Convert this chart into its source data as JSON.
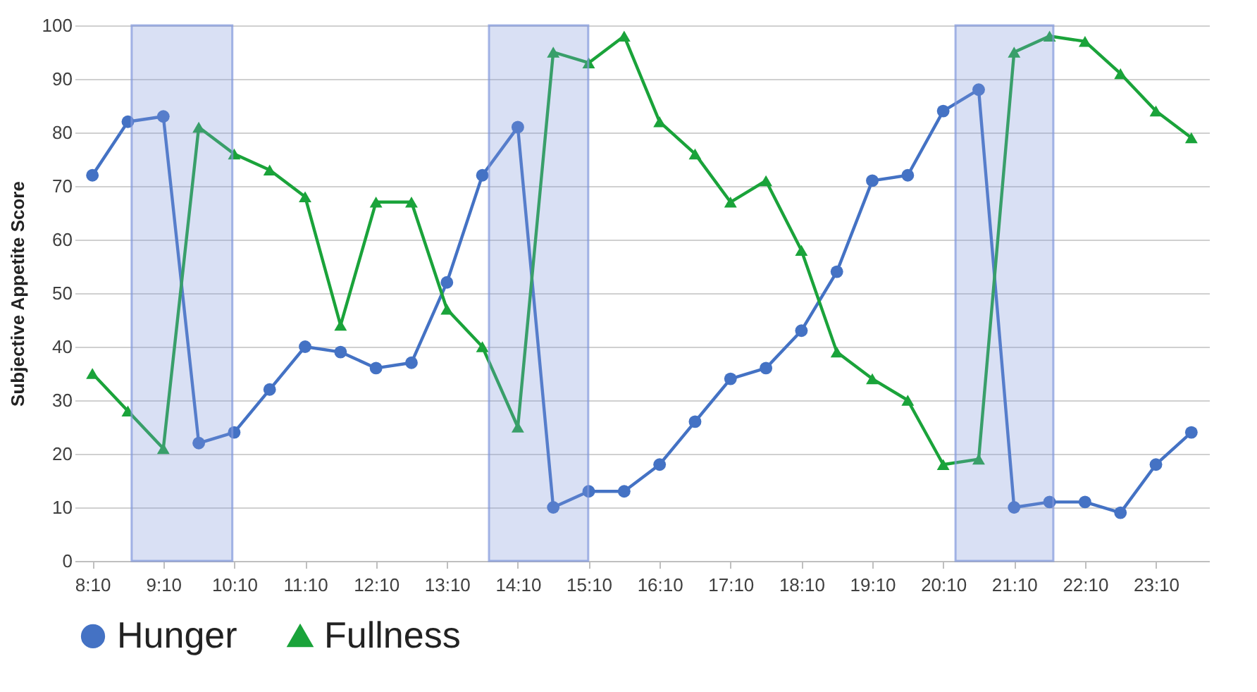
{
  "chart_data": {
    "type": "line",
    "ylabel": "Subjective Appetite Score",
    "x": [
      8.1667,
      8.6667,
      9.1667,
      9.6667,
      10.1667,
      10.6667,
      11.1667,
      11.6667,
      12.1667,
      12.6667,
      13.1667,
      13.6667,
      14.1667,
      14.6667,
      15.1667,
      15.6667,
      16.1667,
      16.6667,
      17.1667,
      17.6667,
      18.1667,
      18.6667,
      19.1667,
      19.6667,
      20.1667,
      20.6667,
      21.1667,
      21.6667,
      22.1667,
      22.6667,
      23.1667,
      23.6667
    ],
    "series": [
      {
        "name": "Hunger",
        "color": "#4472c4",
        "marker": "circle",
        "values": [
          72,
          82,
          83,
          22,
          24,
          32,
          40,
          39,
          36,
          37,
          52,
          72,
          81,
          10,
          13,
          13,
          18,
          26,
          34,
          36,
          43,
          54,
          71,
          72,
          84,
          88,
          10,
          11,
          11,
          9,
          18,
          24
        ]
      },
      {
        "name": "Fullness",
        "color": "#1aa33a",
        "marker": "triangle",
        "values": [
          35,
          28,
          21,
          81,
          76,
          73,
          68,
          44,
          67,
          67,
          47,
          40,
          25,
          95,
          93,
          98,
          82,
          76,
          67,
          71,
          58,
          39,
          34,
          30,
          18,
          19,
          95,
          98,
          97,
          91,
          84,
          79
        ]
      }
    ],
    "xlim": [
      7.9167,
      23.9167
    ],
    "xticks": [
      {
        "value": 8.1667,
        "label": "8:10"
      },
      {
        "value": 9.1667,
        "label": "9:10"
      },
      {
        "value": 10.1667,
        "label": "10:10"
      },
      {
        "value": 11.1667,
        "label": "11:10"
      },
      {
        "value": 12.1667,
        "label": "12:10"
      },
      {
        "value": 13.1667,
        "label": "13:10"
      },
      {
        "value": 14.1667,
        "label": "14:10"
      },
      {
        "value": 15.1667,
        "label": "15:10"
      },
      {
        "value": 16.1667,
        "label": "16:10"
      },
      {
        "value": 17.1667,
        "label": "17:10"
      },
      {
        "value": 18.1667,
        "label": "18:10"
      },
      {
        "value": 19.1667,
        "label": "19:10"
      },
      {
        "value": 20.1667,
        "label": "20:10"
      },
      {
        "value": 21.1667,
        "label": "21:10"
      },
      {
        "value": 22.1667,
        "label": "22:10"
      },
      {
        "value": 23.1667,
        "label": "23:10"
      }
    ],
    "ylim": [
      0,
      100
    ],
    "yticks": [
      0,
      10,
      20,
      30,
      40,
      50,
      60,
      70,
      80,
      90,
      100
    ],
    "grid": "y",
    "legend": "bottom",
    "bands": [
      {
        "axis": "x",
        "from": 8.72,
        "to": 10.14,
        "color": "#8097dc"
      },
      {
        "axis": "x",
        "from": 13.76,
        "to": 15.16,
        "color": "#8097dc"
      },
      {
        "axis": "x",
        "from": 20.34,
        "to": 21.72,
        "color": "#8097dc"
      }
    ]
  }
}
